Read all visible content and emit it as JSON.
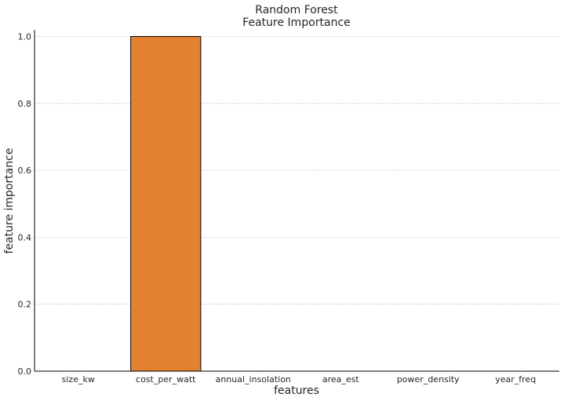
{
  "chart_data": {
    "type": "bar",
    "title_lines": [
      "Random Forest",
      "Feature Importance"
    ],
    "xlabel": "features",
    "ylabel": "feature importance",
    "categories": [
      "size_kw",
      "cost_per_watt",
      "annual_insolation",
      "area_est",
      "power_density",
      "year_freq"
    ],
    "values": [
      0.0,
      1.0,
      0.0,
      0.0,
      0.0,
      0.0
    ],
    "ylim": [
      0.0,
      1.02
    ],
    "yticks": [
      0.0,
      0.2,
      0.4,
      0.6,
      0.8,
      1.0
    ],
    "ytick_labels": [
      "0.0",
      "0.2",
      "0.4",
      "0.6",
      "0.8",
      "1.0"
    ],
    "grid": "y",
    "bar_color": "#e2812f",
    "edge_color": "#000000"
  }
}
